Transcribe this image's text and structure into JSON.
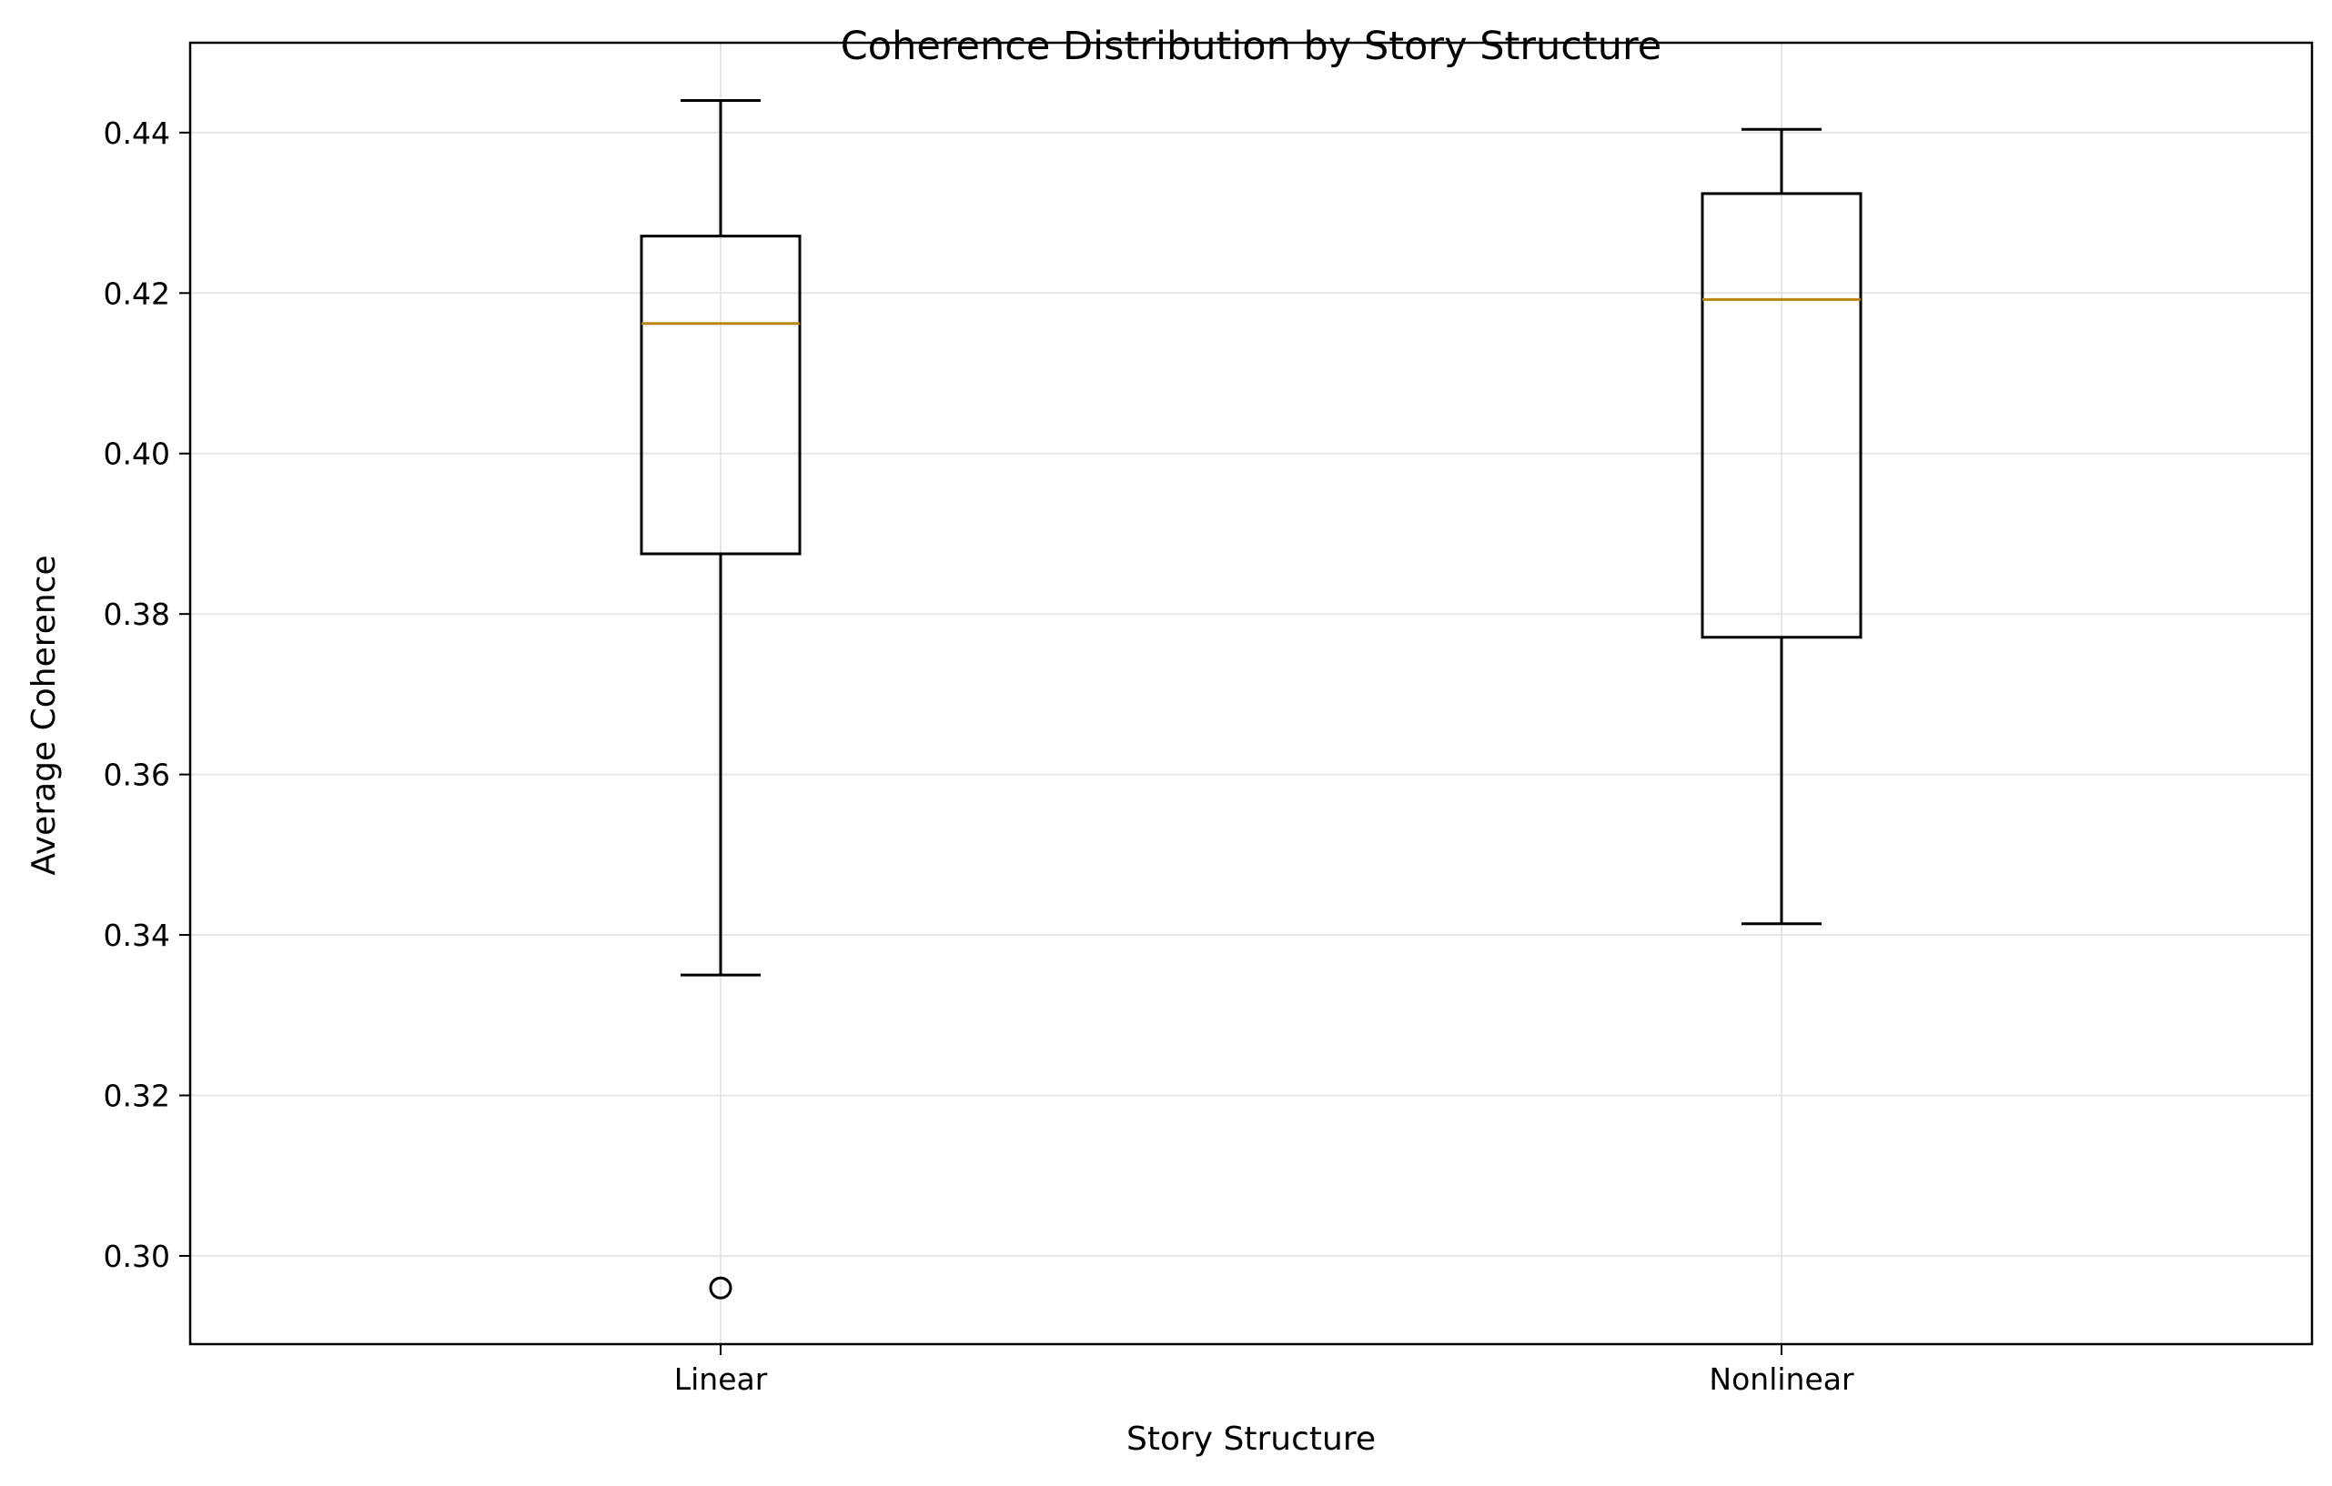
{
  "chart_data": {
    "type": "box",
    "title": "Coherence Distribution by Story Structure",
    "xlabel": "Story Structure",
    "ylabel": "Average Coherence",
    "ylim": [
      0.289,
      0.4512
    ],
    "yticks": [
      0.3,
      0.32,
      0.34,
      0.36,
      0.38,
      0.4,
      0.42,
      0.44
    ],
    "ytick_labels": [
      "0.30",
      "0.32",
      "0.34",
      "0.36",
      "0.38",
      "0.40",
      "0.42",
      "0.44"
    ],
    "grid": true,
    "categories": [
      "Linear",
      "Nonlinear"
    ],
    "boxes": [
      {
        "category": "Linear",
        "whisker_low": 0.335,
        "q1": 0.3875,
        "median": 0.4162,
        "q3": 0.4271,
        "whisker_high": 0.444,
        "outliers": [
          0.296
        ]
      },
      {
        "category": "Nonlinear",
        "whisker_low": 0.3414,
        "q1": 0.3771,
        "median": 0.4192,
        "q3": 0.4324,
        "whisker_high": 0.4404,
        "outliers": []
      }
    ],
    "colors": {
      "box": "#000000",
      "median": "#b8860b",
      "grid": "#e6e6e6"
    }
  }
}
